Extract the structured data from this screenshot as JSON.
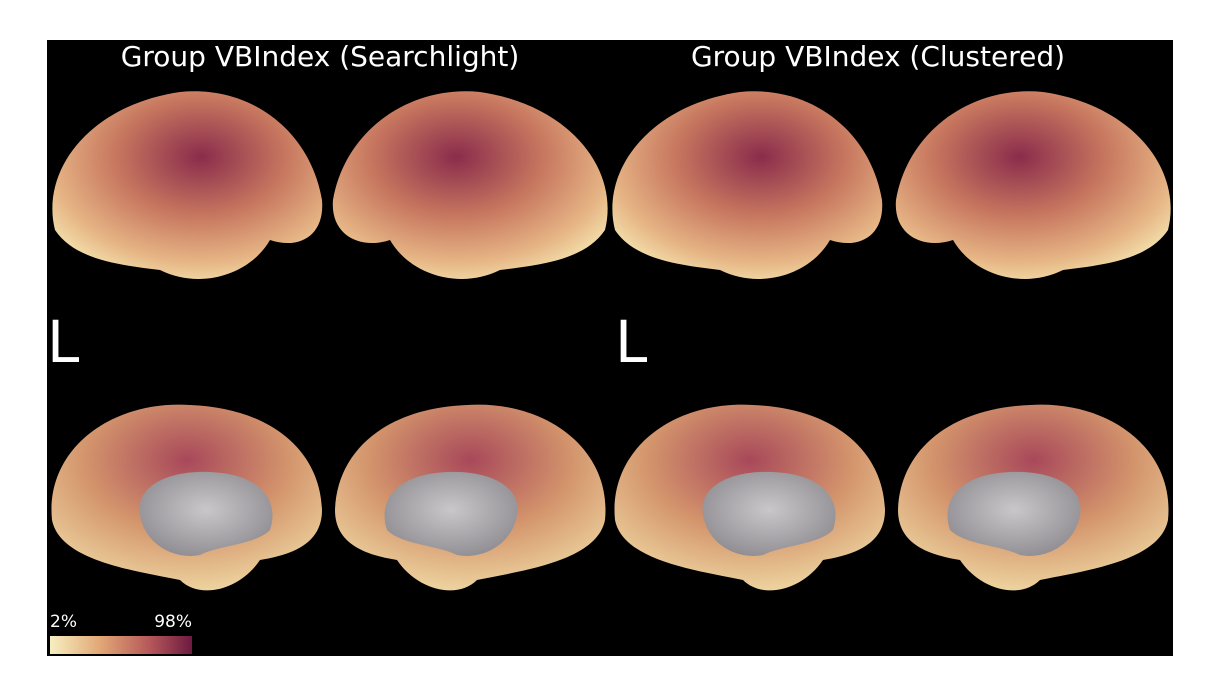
{
  "panels": [
    {
      "title": "Group VBIndex (Searchlight)",
      "hemisphere_label": "L"
    },
    {
      "title": "Group VBIndex (Clustered)",
      "hemisphere_label": "L"
    }
  ],
  "colorbar": {
    "min_label": "2%",
    "max_label": "98%"
  }
}
